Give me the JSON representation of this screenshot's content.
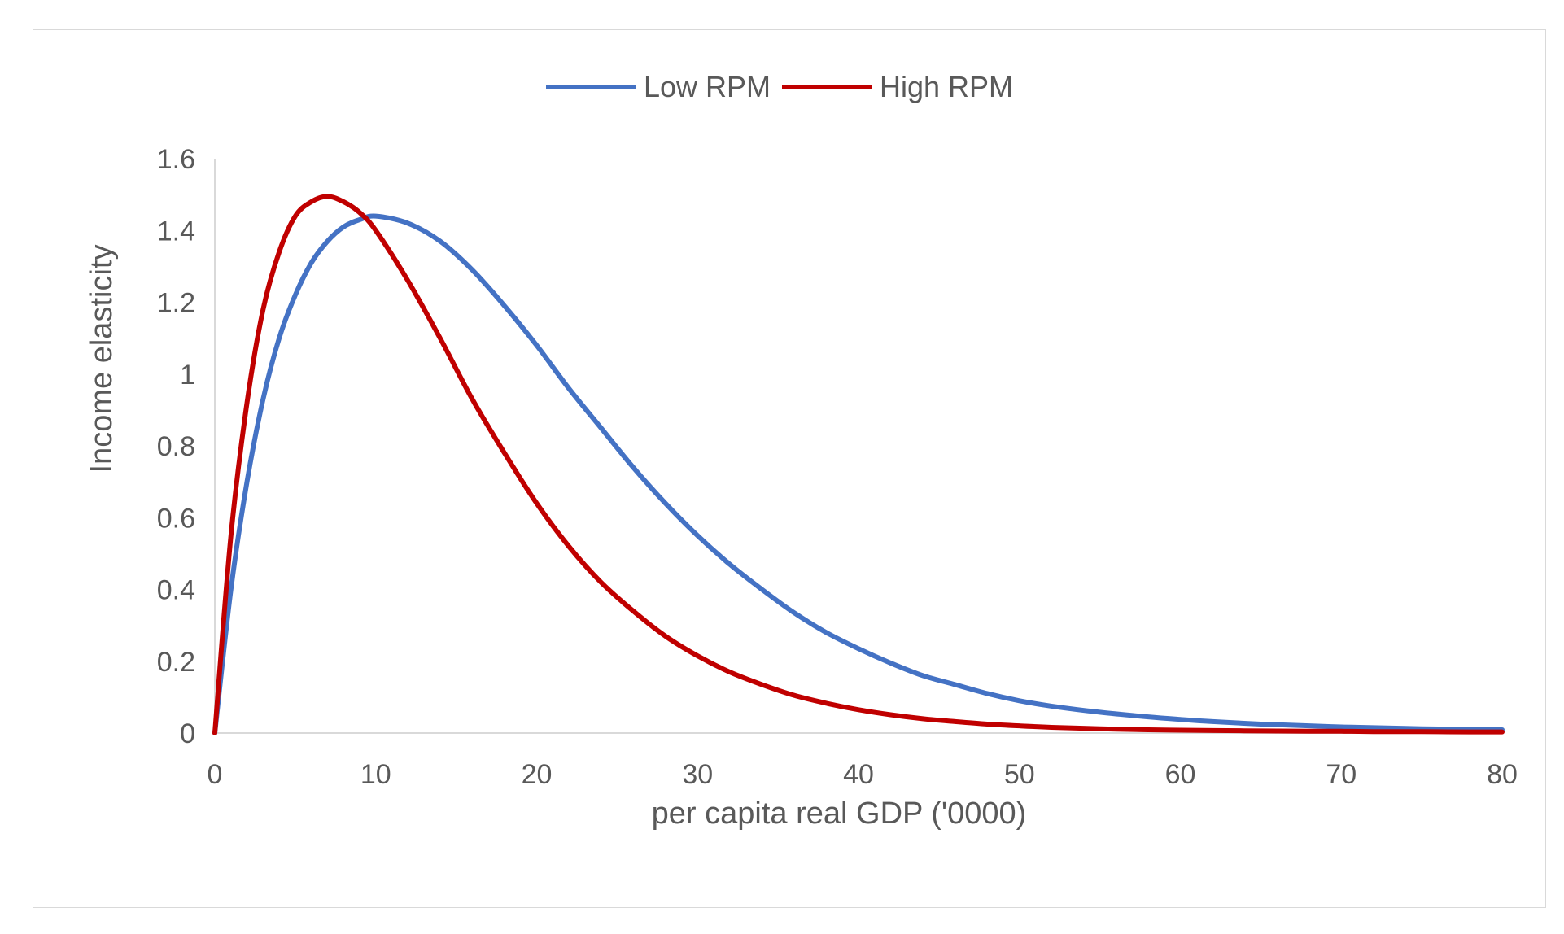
{
  "chart_data": {
    "type": "line",
    "title": "",
    "xlabel": "per capita real GDP ('0000)",
    "ylabel": "Income elasticity",
    "xlim": [
      0,
      80
    ],
    "ylim": [
      0,
      1.6
    ],
    "x_ticks": [
      "0",
      "10",
      "20",
      "30",
      "40",
      "50",
      "60",
      "70",
      "80"
    ],
    "y_ticks": [
      "0",
      "0.2",
      "0.4",
      "0.6",
      "0.8",
      "1",
      "1.2",
      "1.4",
      "1.6"
    ],
    "grid": false,
    "legend_position": "top-center",
    "x": [
      0,
      1,
      2,
      3,
      4,
      5,
      6,
      7,
      8,
      9,
      10,
      12,
      14,
      16,
      18,
      20,
      22,
      24,
      26,
      28,
      30,
      32,
      34,
      36,
      38,
      40,
      42,
      44,
      46,
      48,
      50,
      52,
      55,
      58,
      60,
      62,
      65,
      68,
      70,
      72,
      75,
      78,
      80
    ],
    "series": [
      {
        "name": "Low RPM",
        "color": "#4472C4",
        "values": [
          0,
          0.4,
          0.7,
          0.93,
          1.1,
          1.22,
          1.31,
          1.37,
          1.41,
          1.43,
          1.44,
          1.42,
          1.37,
          1.29,
          1.19,
          1.08,
          0.96,
          0.85,
          0.74,
          0.64,
          0.55,
          0.47,
          0.4,
          0.335,
          0.28,
          0.235,
          0.195,
          0.16,
          0.135,
          0.11,
          0.09,
          0.075,
          0.058,
          0.045,
          0.038,
          0.032,
          0.025,
          0.02,
          0.017,
          0.015,
          0.012,
          0.01,
          0.009
        ]
      },
      {
        "name": "High RPM",
        "color": "#C00000",
        "values": [
          0,
          0.55,
          0.92,
          1.18,
          1.34,
          1.44,
          1.48,
          1.495,
          1.48,
          1.45,
          1.4,
          1.26,
          1.1,
          0.93,
          0.78,
          0.64,
          0.52,
          0.42,
          0.34,
          0.27,
          0.215,
          0.17,
          0.135,
          0.105,
          0.083,
          0.065,
          0.051,
          0.04,
          0.032,
          0.025,
          0.02,
          0.016,
          0.012,
          0.009,
          0.008,
          0.007,
          0.006,
          0.005,
          0.005,
          0.004,
          0.004,
          0.003,
          0.003
        ]
      }
    ]
  }
}
